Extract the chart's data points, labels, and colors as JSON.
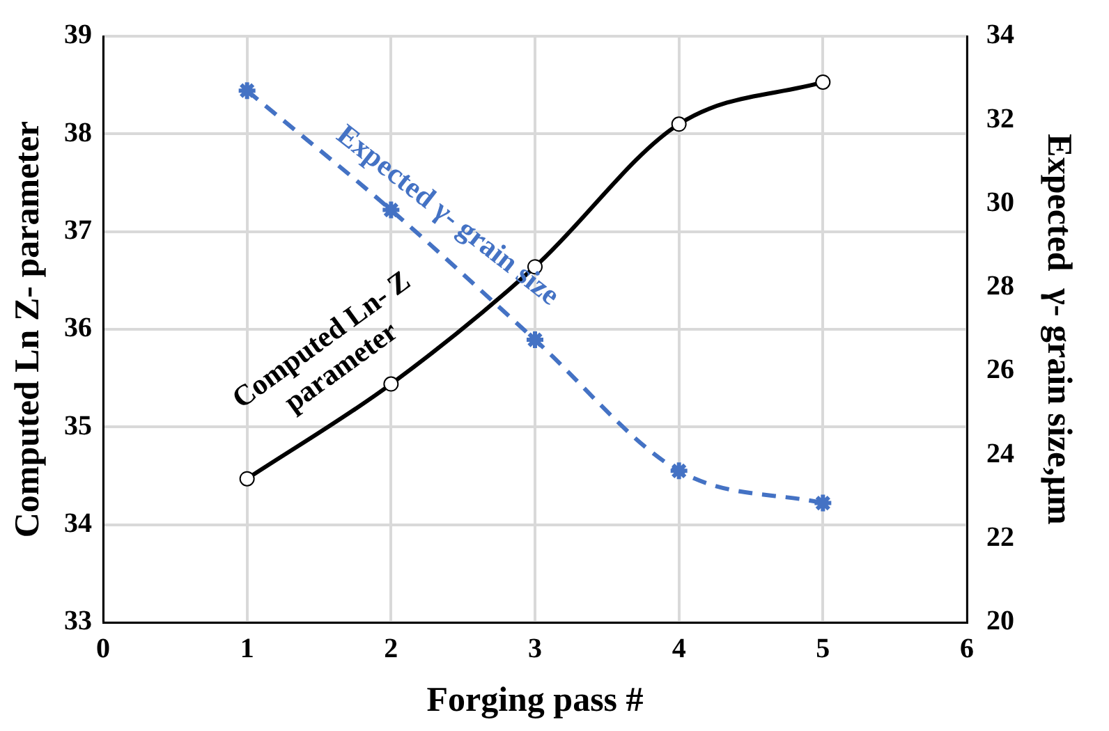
{
  "chart_data": {
    "type": "line",
    "xlabel": "Forging pass #",
    "ylabel": "Computed Ln Z- parameter",
    "y2label": "Expected  γ- grain size,μm",
    "x": [
      1,
      2,
      3,
      4,
      5
    ],
    "series": [
      {
        "name": "Computed Ln- Z parameter",
        "color": "#000000",
        "values": [
          34.47,
          35.44,
          36.64,
          38.1,
          38.53
        ],
        "marker": "circle",
        "line_style": "solid"
      },
      {
        "name": "Expected γ- grain size",
        "color": "#4472c4",
        "values": [
          32.7,
          29.85,
          26.75,
          23.62,
          22.85
        ],
        "axis": "y2",
        "marker": "cross",
        "line_style": "dashed"
      }
    ],
    "xlim": [
      0,
      6
    ],
    "xticks": [
      0,
      1,
      2,
      3,
      4,
      5,
      6
    ],
    "ylim": [
      33,
      39
    ],
    "yticks": [
      33,
      34,
      35,
      36,
      37,
      38,
      39
    ],
    "y2lim": [
      20,
      34
    ],
    "y2ticks": [
      20,
      22,
      24,
      26,
      28,
      30,
      32,
      34
    ],
    "grid": true,
    "legend": false
  }
}
